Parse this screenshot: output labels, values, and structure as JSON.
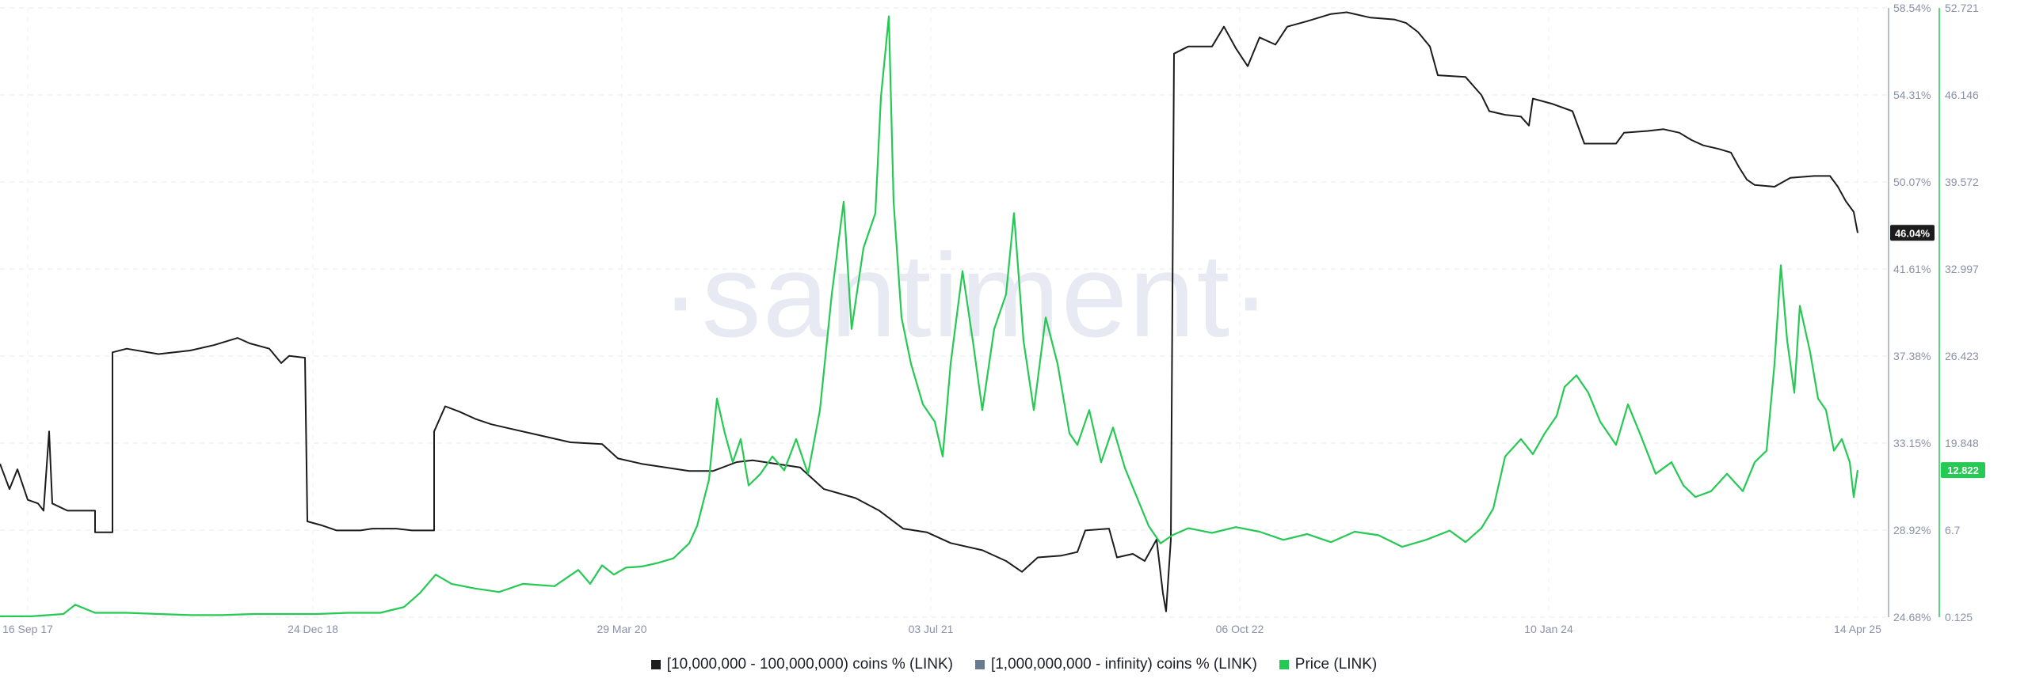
{
  "watermark": "·santiment·",
  "legend": [
    {
      "label": "[10,000,000 - 100,000,000) coins % (LINK)",
      "color": "#1c1c1c"
    },
    {
      "label": "[1,000,000,000 - infinity) coins % (LINK)",
      "color": "#6b7a90"
    },
    {
      "label": "Price (LINK)",
      "color": "#26c953"
    }
  ],
  "chart_data": {
    "type": "line",
    "x_ticks": [
      "16 Sep 17",
      "24 Dec 18",
      "29 Mar 20",
      "03 Jul 21",
      "06 Oct 22",
      "10 Jan 24",
      "14 Apr 25"
    ],
    "y_left_ticks": [
      "58.54%",
      "54.31%",
      "50.07%",
      "41.61%",
      "37.38%",
      "33.15%",
      "28.92%",
      "24.68%"
    ],
    "y_right_ticks": [
      "52.721",
      "46.146",
      "39.572",
      "32.997",
      "26.423",
      "19.848",
      "6.7",
      "0.125"
    ],
    "y_left_range": [
      24.68,
      58.54
    ],
    "y_right_range": [
      0.125,
      52.721
    ],
    "current_values": {
      "holdings": "46.04%",
      "price": "12.822"
    },
    "grid": true,
    "series": [
      {
        "name": "[10,000,000 - 100,000,000) coins % (LINK)",
        "axis": "left",
        "color": "#1c1c1c",
        "points": [
          [
            0,
            33.2
          ],
          [
            12,
            31.8
          ],
          [
            22,
            32.9
          ],
          [
            35,
            31.2
          ],
          [
            48,
            31.0
          ],
          [
            55,
            30.6
          ],
          [
            62,
            35.0
          ],
          [
            66,
            31.0
          ],
          [
            85,
            30.6
          ],
          [
            120,
            30.6
          ],
          [
            120,
            29.4
          ],
          [
            142,
            29.4
          ],
          [
            142,
            39.4
          ],
          [
            160,
            39.6
          ],
          [
            200,
            39.3
          ],
          [
            240,
            39.5
          ],
          [
            270,
            39.8
          ],
          [
            300,
            40.2
          ],
          [
            315,
            39.9
          ],
          [
            340,
            39.6
          ],
          [
            355,
            38.8
          ],
          [
            365,
            39.2
          ],
          [
            385,
            39.1
          ],
          [
            388,
            30.0
          ],
          [
            405,
            29.8
          ],
          [
            425,
            29.5
          ],
          [
            455,
            29.5
          ],
          [
            470,
            29.6
          ],
          [
            500,
            29.6
          ],
          [
            520,
            29.5
          ],
          [
            548,
            29.5
          ],
          [
            548,
            35.0
          ],
          [
            562,
            36.4
          ],
          [
            580,
            36.1
          ],
          [
            600,
            35.7
          ],
          [
            620,
            35.4
          ],
          [
            640,
            35.2
          ],
          [
            680,
            34.8
          ],
          [
            720,
            34.4
          ],
          [
            760,
            34.3
          ],
          [
            780,
            33.5
          ],
          [
            810,
            33.2
          ],
          [
            840,
            33.0
          ],
          [
            870,
            32.8
          ],
          [
            900,
            32.8
          ],
          [
            930,
            33.3
          ],
          [
            950,
            33.4
          ],
          [
            980,
            33.2
          ],
          [
            1010,
            33.0
          ],
          [
            1040,
            31.8
          ],
          [
            1080,
            31.3
          ],
          [
            1110,
            30.6
          ],
          [
            1140,
            29.6
          ],
          [
            1170,
            29.4
          ],
          [
            1200,
            28.8
          ],
          [
            1240,
            28.4
          ],
          [
            1270,
            27.8
          ],
          [
            1290,
            27.2
          ],
          [
            1310,
            28.0
          ],
          [
            1340,
            28.1
          ],
          [
            1360,
            28.3
          ],
          [
            1370,
            29.5
          ],
          [
            1400,
            29.6
          ],
          [
            1410,
            28.0
          ],
          [
            1430,
            28.2
          ],
          [
            1445,
            27.8
          ],
          [
            1460,
            29.0
          ],
          [
            1468,
            26.0
          ],
          [
            1472,
            25.0
          ],
          [
            1478,
            29.0
          ],
          [
            1482,
            56.0
          ],
          [
            1500,
            56.4
          ],
          [
            1530,
            56.4
          ],
          [
            1545,
            57.5
          ],
          [
            1560,
            56.3
          ],
          [
            1575,
            55.3
          ],
          [
            1590,
            56.9
          ],
          [
            1610,
            56.5
          ],
          [
            1625,
            57.5
          ],
          [
            1650,
            57.8
          ],
          [
            1680,
            58.2
          ],
          [
            1700,
            58.3
          ],
          [
            1730,
            58.0
          ],
          [
            1760,
            57.9
          ],
          [
            1775,
            57.7
          ],
          [
            1790,
            57.2
          ],
          [
            1805,
            56.4
          ],
          [
            1815,
            54.8
          ],
          [
            1850,
            54.7
          ],
          [
            1870,
            53.7
          ],
          [
            1880,
            52.8
          ],
          [
            1900,
            52.6
          ],
          [
            1920,
            52.5
          ],
          [
            1930,
            52.0
          ],
          [
            1935,
            53.5
          ],
          [
            1960,
            53.2
          ],
          [
            1985,
            52.8
          ],
          [
            2000,
            51.0
          ],
          [
            2040,
            51.0
          ],
          [
            2050,
            51.6
          ],
          [
            2080,
            51.7
          ],
          [
            2100,
            51.8
          ],
          [
            2120,
            51.6
          ],
          [
            2135,
            51.2
          ],
          [
            2150,
            50.9
          ],
          [
            2170,
            50.7
          ],
          [
            2185,
            50.5
          ],
          [
            2195,
            49.7
          ],
          [
            2205,
            49.0
          ],
          [
            2215,
            48.7
          ],
          [
            2240,
            48.6
          ],
          [
            2260,
            49.1
          ],
          [
            2290,
            49.2
          ],
          [
            2310,
            49.2
          ],
          [
            2320,
            48.6
          ],
          [
            2330,
            47.8
          ],
          [
            2340,
            47.2
          ],
          [
            2345,
            46.04
          ]
        ]
      },
      {
        "name": "Price (LINK)",
        "axis": "right",
        "color": "#26c953",
        "points": [
          [
            0,
            0.2
          ],
          [
            40,
            0.2
          ],
          [
            80,
            0.4
          ],
          [
            95,
            1.2
          ],
          [
            120,
            0.5
          ],
          [
            160,
            0.5
          ],
          [
            200,
            0.4
          ],
          [
            240,
            0.3
          ],
          [
            280,
            0.3
          ],
          [
            320,
            0.4
          ],
          [
            360,
            0.4
          ],
          [
            400,
            0.4
          ],
          [
            440,
            0.5
          ],
          [
            480,
            0.5
          ],
          [
            510,
            1.0
          ],
          [
            530,
            2.2
          ],
          [
            550,
            3.8
          ],
          [
            570,
            3.0
          ],
          [
            600,
            2.6
          ],
          [
            630,
            2.3
          ],
          [
            660,
            3.0
          ],
          [
            700,
            2.8
          ],
          [
            730,
            4.2
          ],
          [
            745,
            3.0
          ],
          [
            760,
            4.6
          ],
          [
            775,
            3.8
          ],
          [
            790,
            4.4
          ],
          [
            810,
            4.5
          ],
          [
            830,
            4.8
          ],
          [
            850,
            5.2
          ],
          [
            870,
            6.5
          ],
          [
            880,
            8.0
          ],
          [
            895,
            12.0
          ],
          [
            905,
            19.0
          ],
          [
            915,
            16.0
          ],
          [
            925,
            13.5
          ],
          [
            935,
            15.5
          ],
          [
            945,
            11.5
          ],
          [
            960,
            12.5
          ],
          [
            975,
            14.0
          ],
          [
            990,
            12.8
          ],
          [
            1005,
            15.5
          ],
          [
            1020,
            12.5
          ],
          [
            1035,
            18.0
          ],
          [
            1050,
            28.0
          ],
          [
            1065,
            36.0
          ],
          [
            1075,
            25.0
          ],
          [
            1090,
            32.0
          ],
          [
            1105,
            35.0
          ],
          [
            1112,
            45.0
          ],
          [
            1122,
            52.0
          ],
          [
            1128,
            36.0
          ],
          [
            1138,
            26.0
          ],
          [
            1150,
            22.0
          ],
          [
            1165,
            18.5
          ],
          [
            1180,
            17.0
          ],
          [
            1190,
            14.0
          ],
          [
            1200,
            22.0
          ],
          [
            1215,
            30.0
          ],
          [
            1228,
            24.0
          ],
          [
            1240,
            18.0
          ],
          [
            1255,
            25.0
          ],
          [
            1270,
            28.0
          ],
          [
            1280,
            35.0
          ],
          [
            1292,
            24.0
          ],
          [
            1305,
            18.0
          ],
          [
            1320,
            26.0
          ],
          [
            1335,
            22.0
          ],
          [
            1350,
            16.0
          ],
          [
            1360,
            15.0
          ],
          [
            1375,
            18.0
          ],
          [
            1390,
            13.5
          ],
          [
            1405,
            16.5
          ],
          [
            1420,
            13.0
          ],
          [
            1435,
            10.5
          ],
          [
            1450,
            8.0
          ],
          [
            1465,
            6.5
          ],
          [
            1480,
            7.2
          ],
          [
            1500,
            7.8
          ],
          [
            1530,
            7.4
          ],
          [
            1560,
            7.9
          ],
          [
            1590,
            7.5
          ],
          [
            1620,
            6.8
          ],
          [
            1650,
            7.3
          ],
          [
            1680,
            6.6
          ],
          [
            1710,
            7.5
          ],
          [
            1740,
            7.2
          ],
          [
            1770,
            6.2
          ],
          [
            1800,
            6.8
          ],
          [
            1830,
            7.6
          ],
          [
            1850,
            6.6
          ],
          [
            1870,
            7.8
          ],
          [
            1885,
            9.5
          ],
          [
            1900,
            14.0
          ],
          [
            1920,
            15.5
          ],
          [
            1935,
            14.2
          ],
          [
            1950,
            16.0
          ],
          [
            1965,
            17.5
          ],
          [
            1975,
            20.0
          ],
          [
            1990,
            21.0
          ],
          [
            2005,
            19.5
          ],
          [
            2020,
            17.0
          ],
          [
            2040,
            15.0
          ],
          [
            2055,
            18.5
          ],
          [
            2070,
            16.0
          ],
          [
            2090,
            12.5
          ],
          [
            2110,
            13.5
          ],
          [
            2125,
            11.5
          ],
          [
            2140,
            10.5
          ],
          [
            2160,
            11.0
          ],
          [
            2180,
            12.5
          ],
          [
            2200,
            11.0
          ],
          [
            2215,
            13.5
          ],
          [
            2230,
            14.5
          ],
          [
            2240,
            22.0
          ],
          [
            2248,
            30.5
          ],
          [
            2256,
            24.0
          ],
          [
            2265,
            19.5
          ],
          [
            2272,
            27.0
          ],
          [
            2285,
            23.0
          ],
          [
            2295,
            19.0
          ],
          [
            2305,
            18.0
          ],
          [
            2315,
            14.5
          ],
          [
            2325,
            15.5
          ],
          [
            2335,
            13.5
          ],
          [
            2340,
            10.5
          ],
          [
            2345,
            12.822
          ]
        ]
      }
    ]
  }
}
